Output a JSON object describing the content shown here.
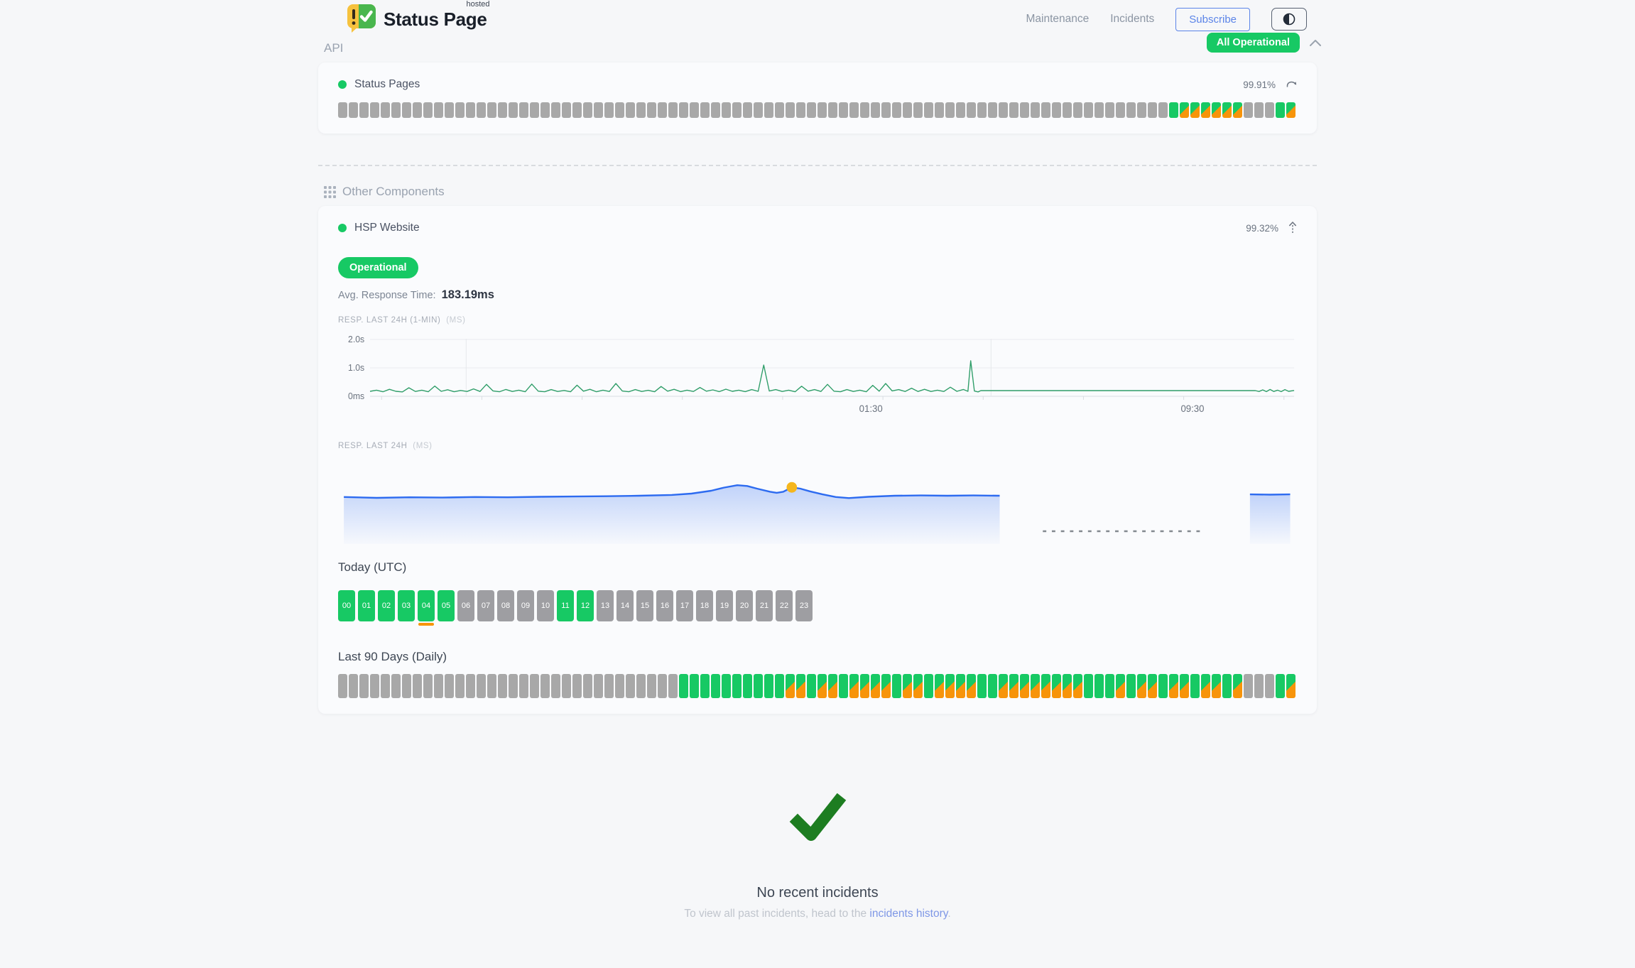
{
  "colors": {
    "operational_green": "#17c964",
    "degraded_orange": "#f7940a",
    "no_data_gray": "#a8a8a8",
    "hour_gray": "#9e9ea2",
    "accent_blue": "#5b84e8",
    "link_blue": "#7e97e6",
    "line_green": "#2e9d68",
    "area_blue": "#2d6bf0",
    "marker_yellow": "#f5b61d",
    "check_green": "#1d7d21",
    "brand_yellow": "#f6c23e",
    "brand_green": "#49b64e"
  },
  "header": {
    "brand": {
      "name": "Status Page",
      "superscript": "hosted"
    },
    "nav": [
      {
        "label": "Maintenance"
      },
      {
        "label": "Incidents"
      }
    ],
    "subscribe_label": "Subscribe",
    "status_badge": {
      "label": "All Operational",
      "color": "#17c964"
    }
  },
  "api": {
    "title": "API",
    "component": {
      "name": "Status Pages",
      "uptime_pct": "99.91%",
      "bars": "ggggggggggggggggggggggggggggggggggggggggggggggggggggggggggggggggggggggggggggggoddddddgggod"
    }
  },
  "other": {
    "title": "Other Components",
    "component": {
      "name": "HSP Website",
      "uptime_pct": "99.32%",
      "status_label": "Operational",
      "avg_label": "Avg. Response Time:",
      "avg_value": "183.19ms"
    },
    "today": {
      "title": "Today (UTC)",
      "hour_labels": [
        "00",
        "01",
        "02",
        "03",
        "04",
        "05",
        "06",
        "07",
        "08",
        "09",
        "10",
        "11",
        "12",
        "13",
        "14",
        "15",
        "16",
        "17",
        "18",
        "19",
        "20",
        "21",
        "22",
        "23"
      ],
      "hour_status": "ooooqogggggooggggggggggg"
    },
    "ninety": {
      "title": "Last 90 Days (Daily)",
      "bars": "ggggggggggggggggggggggggggggggggooooooooooddoddoddddoddoddddooddddddddooododdoddoddodgggod"
    }
  },
  "chart_data": [
    {
      "id": "resp-last-24h-1min",
      "type": "line",
      "title": "RESP. LAST 24H (1-MIN)",
      "unit": "(MS)",
      "color": "#2e9d68",
      "ylim": [
        0,
        2400
      ],
      "y_ticks": [
        {
          "label": "2.0s",
          "ms": 2000
        },
        {
          "label": "1.0s",
          "ms": 1000
        },
        {
          "label": "0ms",
          "ms": 0
        }
      ],
      "x_ticks": [
        {
          "label": "01:30",
          "x": 0.542
        },
        {
          "label": "09:30",
          "x": 0.89
        }
      ],
      "v_gridlines": [
        0.104,
        0.672
      ],
      "points": [
        [
          0,
          175
        ],
        [
          0.007,
          215
        ],
        [
          0.014,
          160
        ],
        [
          0.021,
          245
        ],
        [
          0.028,
          175
        ],
        [
          0.035,
          155
        ],
        [
          0.042,
          300
        ],
        [
          0.049,
          170
        ],
        [
          0.056,
          215
        ],
        [
          0.063,
          160
        ],
        [
          0.07,
          360
        ],
        [
          0.077,
          175
        ],
        [
          0.084,
          230
        ],
        [
          0.091,
          160
        ],
        [
          0.098,
          205
        ],
        [
          0.105,
          170
        ],
        [
          0.112,
          260
        ],
        [
          0.119,
          170
        ],
        [
          0.126,
          420
        ],
        [
          0.133,
          190
        ],
        [
          0.14,
          160
        ],
        [
          0.147,
          240
        ],
        [
          0.154,
          170
        ],
        [
          0.161,
          215
        ],
        [
          0.168,
          160
        ],
        [
          0.175,
          430
        ],
        [
          0.182,
          180
        ],
        [
          0.189,
          160
        ],
        [
          0.196,
          235
        ],
        [
          0.203,
          170
        ],
        [
          0.21,
          205
        ],
        [
          0.217,
          160
        ],
        [
          0.224,
          390
        ],
        [
          0.231,
          180
        ],
        [
          0.238,
          245
        ],
        [
          0.245,
          160
        ],
        [
          0.252,
          215
        ],
        [
          0.259,
          170
        ],
        [
          0.266,
          450
        ],
        [
          0.273,
          185
        ],
        [
          0.28,
          160
        ],
        [
          0.287,
          235
        ],
        [
          0.294,
          170
        ],
        [
          0.301,
          210
        ],
        [
          0.308,
          160
        ],
        [
          0.315,
          345
        ],
        [
          0.322,
          180
        ],
        [
          0.329,
          245
        ],
        [
          0.336,
          165
        ],
        [
          0.343,
          215
        ],
        [
          0.35,
          170
        ],
        [
          0.357,
          310
        ],
        [
          0.364,
          180
        ],
        [
          0.371,
          225
        ],
        [
          0.378,
          165
        ],
        [
          0.385,
          250
        ],
        [
          0.392,
          175
        ],
        [
          0.399,
          215
        ],
        [
          0.406,
          165
        ],
        [
          0.413,
          235
        ],
        [
          0.42,
          175
        ],
        [
          0.426,
          1100
        ],
        [
          0.432,
          185
        ],
        [
          0.439,
          235
        ],
        [
          0.446,
          170
        ],
        [
          0.453,
          215
        ],
        [
          0.46,
          160
        ],
        [
          0.467,
          355
        ],
        [
          0.474,
          180
        ],
        [
          0.481,
          235
        ],
        [
          0.488,
          170
        ],
        [
          0.495,
          420
        ],
        [
          0.502,
          180
        ],
        [
          0.509,
          160
        ],
        [
          0.516,
          235
        ],
        [
          0.523,
          170
        ],
        [
          0.53,
          215
        ],
        [
          0.537,
          160
        ],
        [
          0.544,
          385
        ],
        [
          0.551,
          180
        ],
        [
          0.558,
          450
        ],
        [
          0.565,
          190
        ],
        [
          0.572,
          235
        ],
        [
          0.579,
          170
        ],
        [
          0.586,
          285
        ],
        [
          0.593,
          170
        ],
        [
          0.6,
          245
        ],
        [
          0.607,
          170
        ],
        [
          0.614,
          215
        ],
        [
          0.621,
          170
        ],
        [
          0.628,
          320
        ],
        [
          0.635,
          175
        ],
        [
          0.642,
          240
        ],
        [
          0.647,
          175
        ],
        [
          0.65,
          1250
        ],
        [
          0.654,
          185
        ],
        [
          0.658,
          155
        ],
        [
          0.661,
          200
        ],
        [
          0.958,
          200
        ],
        [
          0.962,
          170
        ],
        [
          0.966,
          225
        ],
        [
          0.97,
          165
        ],
        [
          0.974,
          240
        ],
        [
          0.978,
          170
        ],
        [
          0.982,
          215
        ],
        [
          0.986,
          165
        ],
        [
          0.99,
          235
        ],
        [
          0.994,
          175
        ],
        [
          1,
          205
        ]
      ]
    },
    {
      "id": "resp-last-24h",
      "type": "area",
      "title": "RESP. LAST 24H",
      "unit": "(MS)",
      "color": "#2d6bf0",
      "ylim": [
        0,
        500
      ],
      "marker": {
        "segment": 0,
        "x": 0.683,
        "ms": 205,
        "color": "#f5b61d"
      },
      "gap_dash": {
        "x0": 0.735,
        "x1": 0.904
      },
      "segments": [
        {
          "x0": 0.006,
          "x1": 0.69,
          "points": [
            [
              0,
              168
            ],
            [
              0.05,
              165
            ],
            [
              0.1,
              167
            ],
            [
              0.15,
              166
            ],
            [
              0.2,
              168
            ],
            [
              0.25,
              167
            ],
            [
              0.3,
              169
            ],
            [
              0.35,
              170
            ],
            [
              0.4,
              171
            ],
            [
              0.45,
              173
            ],
            [
              0.5,
              176
            ],
            [
              0.53,
              181
            ],
            [
              0.56,
              192
            ],
            [
              0.58,
              204
            ],
            [
              0.6,
              213
            ],
            [
              0.615,
              210
            ],
            [
              0.63,
              200
            ],
            [
              0.65,
              188
            ],
            [
              0.66,
              184
            ],
            [
              0.67,
              188
            ],
            [
              0.683,
              205
            ],
            [
              0.696,
              200
            ],
            [
              0.71,
              190
            ],
            [
              0.73,
              178
            ],
            [
              0.75,
              168
            ],
            [
              0.77,
              164
            ],
            [
              0.8,
              169
            ],
            [
              0.84,
              173
            ],
            [
              0.88,
              174
            ],
            [
              0.92,
              173
            ],
            [
              0.96,
              174
            ],
            [
              1,
              173
            ]
          ]
        },
        {
          "x0": 0.951,
          "x1": 0.993,
          "points": [
            [
              0,
              178
            ],
            [
              0.5,
              177
            ],
            [
              1,
              178
            ]
          ]
        }
      ]
    }
  ],
  "incidents": {
    "heading": "No recent incidents",
    "subtext_prefix": "To view all past incidents, head to the",
    "link_label": "incidents history",
    "subtext_suffix": "."
  }
}
